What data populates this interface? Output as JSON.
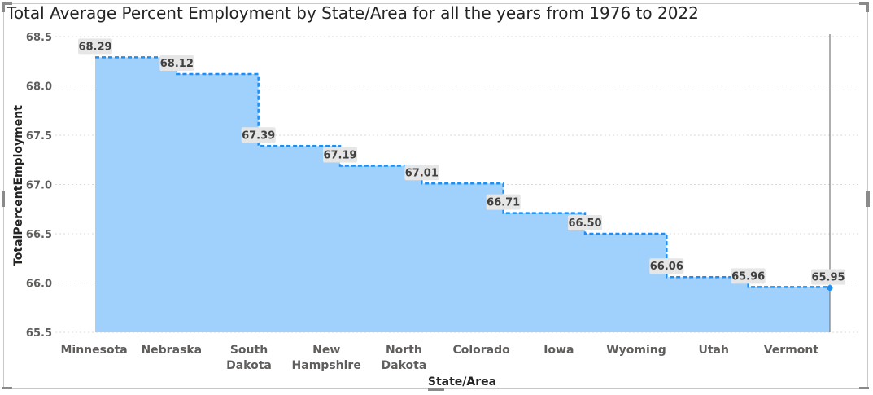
{
  "chart_data": {
    "type": "area",
    "title": "Total Average Percent Employment by State/Area for all the years from 1976 to 2022",
    "xlabel": "State/Area",
    "ylabel": "TotalPercentEmployment",
    "categories": [
      [
        "Minnesota"
      ],
      [
        "Nebraska"
      ],
      [
        "South",
        "Dakota"
      ],
      [
        "New",
        "Hampshire"
      ],
      [
        "North",
        "Dakota"
      ],
      [
        "Colorado"
      ],
      [
        "Iowa"
      ],
      [
        "Wyoming"
      ],
      [
        "Utah"
      ],
      [
        "Vermont"
      ]
    ],
    "values": [
      68.29,
      68.12,
      67.39,
      67.19,
      67.01,
      66.71,
      66.5,
      66.06,
      65.96,
      65.95
    ],
    "data_labels": [
      "68.29",
      "68.12",
      "67.39",
      "67.19",
      "67.01",
      "66.71",
      "66.50",
      "66.06",
      "65.96",
      "65.95"
    ],
    "ylim": [
      65.5,
      68.5
    ],
    "yticks": [
      "65.5",
      "66.0",
      "66.5",
      "67.0",
      "67.5",
      "68.0",
      "68.5"
    ],
    "grid": true,
    "line_style": "step-dashed",
    "colors": {
      "fill": "#a0d0fc",
      "line": "#1f8ef1",
      "label_bg": "#e6e6e6",
      "ref_line": "#7a7a7a"
    }
  }
}
